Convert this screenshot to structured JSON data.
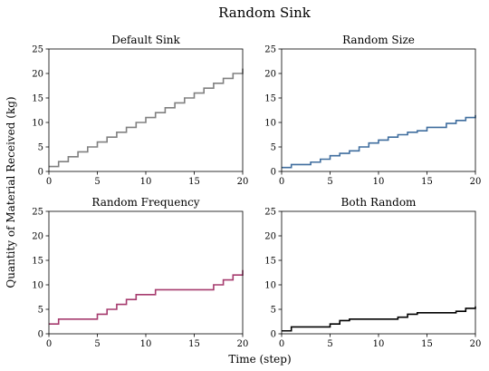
{
  "figure": {
    "title": "Random Sink",
    "xlabel": "Time (step)",
    "ylabel": "Quantity of Material Received (kg)"
  },
  "chart_data": [
    {
      "type": "line",
      "step": "post",
      "title": "Default Sink",
      "color": "#808080",
      "xlim": [
        0,
        20
      ],
      "ylim": [
        0,
        25
      ],
      "xticks": [
        0,
        5,
        10,
        15,
        20
      ],
      "yticks": [
        0,
        5,
        10,
        15,
        20,
        25
      ],
      "x": [
        0,
        1,
        2,
        3,
        4,
        5,
        6,
        7,
        8,
        9,
        10,
        11,
        12,
        13,
        14,
        15,
        16,
        17,
        18,
        19,
        20
      ],
      "y": [
        1,
        2,
        3,
        4,
        5,
        6,
        7,
        8,
        9,
        10,
        11,
        12,
        13,
        14,
        15,
        16,
        17,
        18,
        19,
        20,
        21
      ]
    },
    {
      "type": "line",
      "step": "post",
      "title": "Random Size",
      "color": "#3f6d9e",
      "xlim": [
        0,
        20
      ],
      "ylim": [
        0,
        25
      ],
      "xticks": [
        0,
        5,
        10,
        15,
        20
      ],
      "yticks": [
        0,
        5,
        10,
        15,
        20,
        25
      ],
      "x": [
        0,
        1,
        3,
        4,
        5,
        6,
        7,
        8,
        9,
        10,
        11,
        12,
        13,
        14,
        15,
        17,
        18,
        19,
        20
      ],
      "y": [
        0.8,
        1.4,
        1.9,
        2.5,
        3.2,
        3.7,
        4.2,
        5.0,
        5.8,
        6.4,
        7.0,
        7.5,
        8.0,
        8.3,
        9.0,
        9.8,
        10.4,
        11.0,
        11.5
      ]
    },
    {
      "type": "line",
      "step": "post",
      "title": "Random Frequency",
      "color": "#a63b6e",
      "xlim": [
        0,
        20
      ],
      "ylim": [
        0,
        25
      ],
      "xticks": [
        0,
        5,
        10,
        15,
        20
      ],
      "yticks": [
        0,
        5,
        10,
        15,
        20,
        25
      ],
      "x": [
        0,
        1,
        5,
        6,
        7,
        8,
        9,
        11,
        17,
        18,
        19,
        20
      ],
      "y": [
        2,
        3,
        4,
        5,
        6,
        7,
        8,
        9,
        10,
        11,
        12,
        13
      ]
    },
    {
      "type": "line",
      "step": "post",
      "title": "Both Random",
      "color": "#000000",
      "xlim": [
        0,
        20
      ],
      "ylim": [
        0,
        25
      ],
      "xticks": [
        0,
        5,
        10,
        15,
        20
      ],
      "yticks": [
        0,
        5,
        10,
        15,
        20,
        25
      ],
      "x": [
        0,
        1,
        5,
        6,
        7,
        12,
        13,
        14,
        18,
        19,
        20
      ],
      "y": [
        0.6,
        1.4,
        2.0,
        2.7,
        3.0,
        3.4,
        4.0,
        4.3,
        4.6,
        5.2,
        5.6
      ]
    }
  ]
}
